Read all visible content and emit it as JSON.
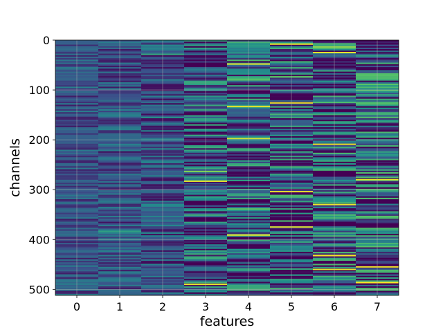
{
  "chart_data": {
    "type": "heatmap",
    "title": "",
    "xlabel": "features",
    "ylabel": "channels",
    "x_ticks": [
      "0",
      "1",
      "2",
      "3",
      "4",
      "5",
      "6",
      "7"
    ],
    "y_ticks": [
      "0",
      "100",
      "200",
      "300",
      "400",
      "500"
    ],
    "x_range": [
      -0.5,
      7.5
    ],
    "y_range": [
      0,
      512
    ],
    "y_inverted": true,
    "n_channels": 512,
    "n_features": 8,
    "grid": true,
    "colormap": "viridis",
    "colormap_stops": [
      "#440154",
      "#3b528b",
      "#21918c",
      "#5ec962",
      "#fde725"
    ],
    "background_color": "#3b528b",
    "feature_column_contrast": [
      0.35,
      0.4,
      0.45,
      0.75,
      0.8,
      0.85,
      0.9,
      0.95
    ],
    "bright_streaks": [
      {
        "feature": 4,
        "channel": 48
      },
      {
        "feature": 4,
        "channel": 133
      },
      {
        "feature": 4,
        "channel": 391
      },
      {
        "feature": 5,
        "channel": 8
      },
      {
        "feature": 5,
        "channel": 126
      },
      {
        "feature": 5,
        "channel": 304
      },
      {
        "feature": 5,
        "channel": 375
      },
      {
        "feature": 6,
        "channel": 25
      },
      {
        "feature": 6,
        "channel": 209
      },
      {
        "feature": 6,
        "channel": 330
      },
      {
        "feature": 6,
        "channel": 460
      },
      {
        "feature": 3,
        "channel": 283
      },
      {
        "feature": 3,
        "channel": 490
      },
      {
        "feature": 7,
        "channel": 280
      },
      {
        "feature": 7,
        "channel": 455
      }
    ]
  }
}
